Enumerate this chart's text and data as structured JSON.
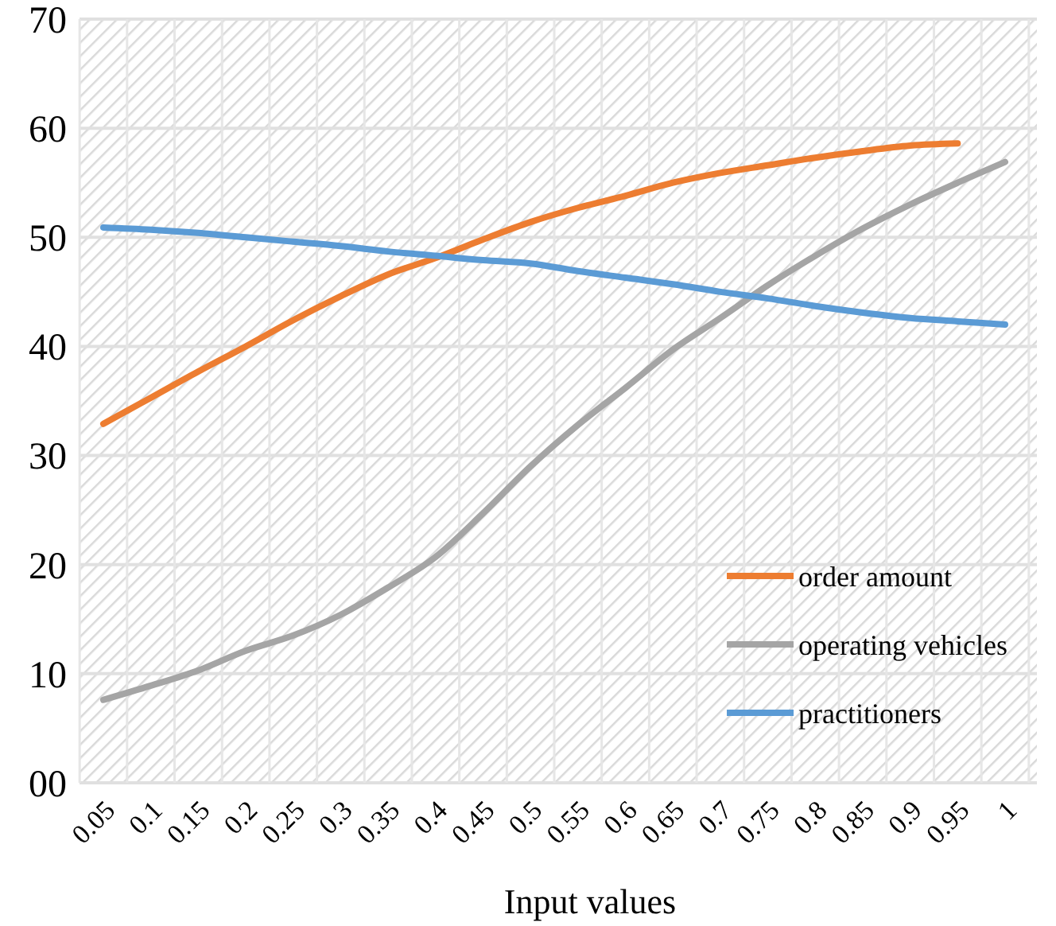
{
  "chart_data": {
    "type": "line",
    "xlabel": "Input values",
    "categories": [
      "0.05",
      "0.1",
      "0.15",
      "0.2",
      "0.25",
      "0.3",
      "0.35",
      "0.4",
      "0.45",
      "0.5",
      "0.55",
      "0.6",
      "0.65",
      "0.7",
      "0.75",
      "0.8",
      "0.85",
      "0.9",
      "0.95",
      "1"
    ],
    "series": [
      {
        "name": "order amount",
        "color": "#ed7d31",
        "values": [
          32.9,
          35.3,
          37.7,
          40.0,
          42.4,
          44.6,
          46.6,
          48.1,
          49.8,
          51.4,
          52.7,
          53.8,
          55.0,
          55.9,
          56.6,
          57.3,
          57.9,
          58.4,
          58.6,
          null
        ]
      },
      {
        "name": "operating vehicles",
        "color": "#a5a5a5",
        "values": [
          7.6,
          8.9,
          10.3,
          12.1,
          13.5,
          15.4,
          17.9,
          20.7,
          24.7,
          29.0,
          32.8,
          36.2,
          39.7,
          42.6,
          45.6,
          48.3,
          50.8,
          53.0,
          55.0,
          56.9
        ]
      },
      {
        "name": "practitioners",
        "color": "#5b9bd5",
        "values": [
          50.9,
          50.7,
          50.4,
          50.0,
          49.6,
          49.2,
          48.7,
          48.3,
          47.9,
          47.6,
          46.9,
          46.3,
          45.7,
          45.0,
          44.4,
          43.7,
          43.1,
          42.6,
          42.3,
          42.0
        ]
      }
    ],
    "ylim": [
      0,
      70
    ],
    "yticks": [
      {
        "value": 0,
        "label": "00"
      },
      10,
      20,
      30,
      40,
      50,
      60,
      70
    ],
    "grid": true,
    "legend": "bottom right",
    "marker": "none",
    "line_style": "solid"
  }
}
